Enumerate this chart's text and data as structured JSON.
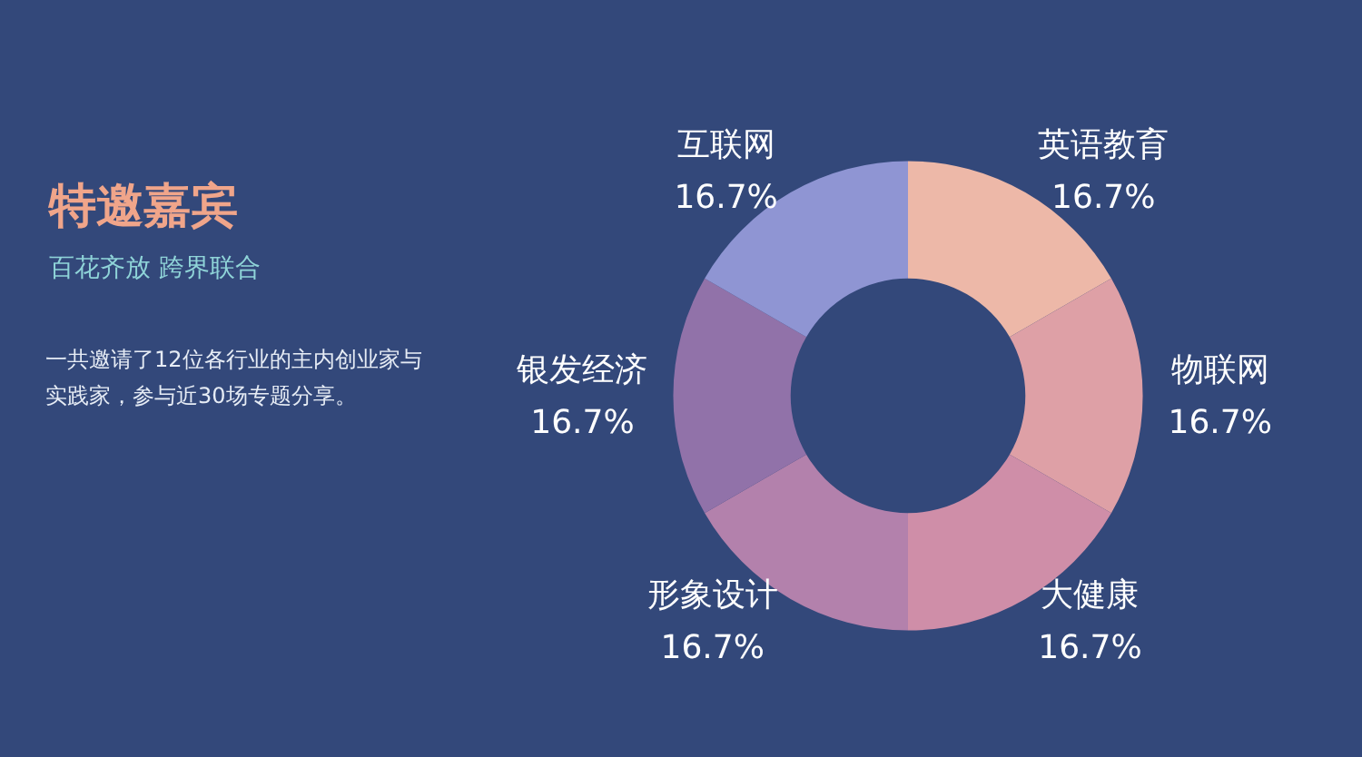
{
  "chart_data": {
    "type": "donut",
    "title": "特邀嘉宾",
    "subtitle": "百花齐放 跨界联合",
    "annotations": [
      "一共邀请了12位各行业的主内创业家与实践家，参与近30场专题分享。"
    ],
    "categories": [
      "英语教育",
      "物联网",
      "大健康",
      "形象设计",
      "银发经济",
      "互联网"
    ],
    "values": [
      16.7,
      16.7,
      16.7,
      16.7,
      16.7,
      16.7
    ],
    "colors": [
      "#edb8a8",
      "#dea0a6",
      "#cf8ea8",
      "#b381ac",
      "#9172a9",
      "#8f95d3"
    ],
    "value_labels": [
      "16.7%",
      "16.7%",
      "16.7%",
      "16.7%",
      "16.7%",
      "16.7%"
    ]
  }
}
